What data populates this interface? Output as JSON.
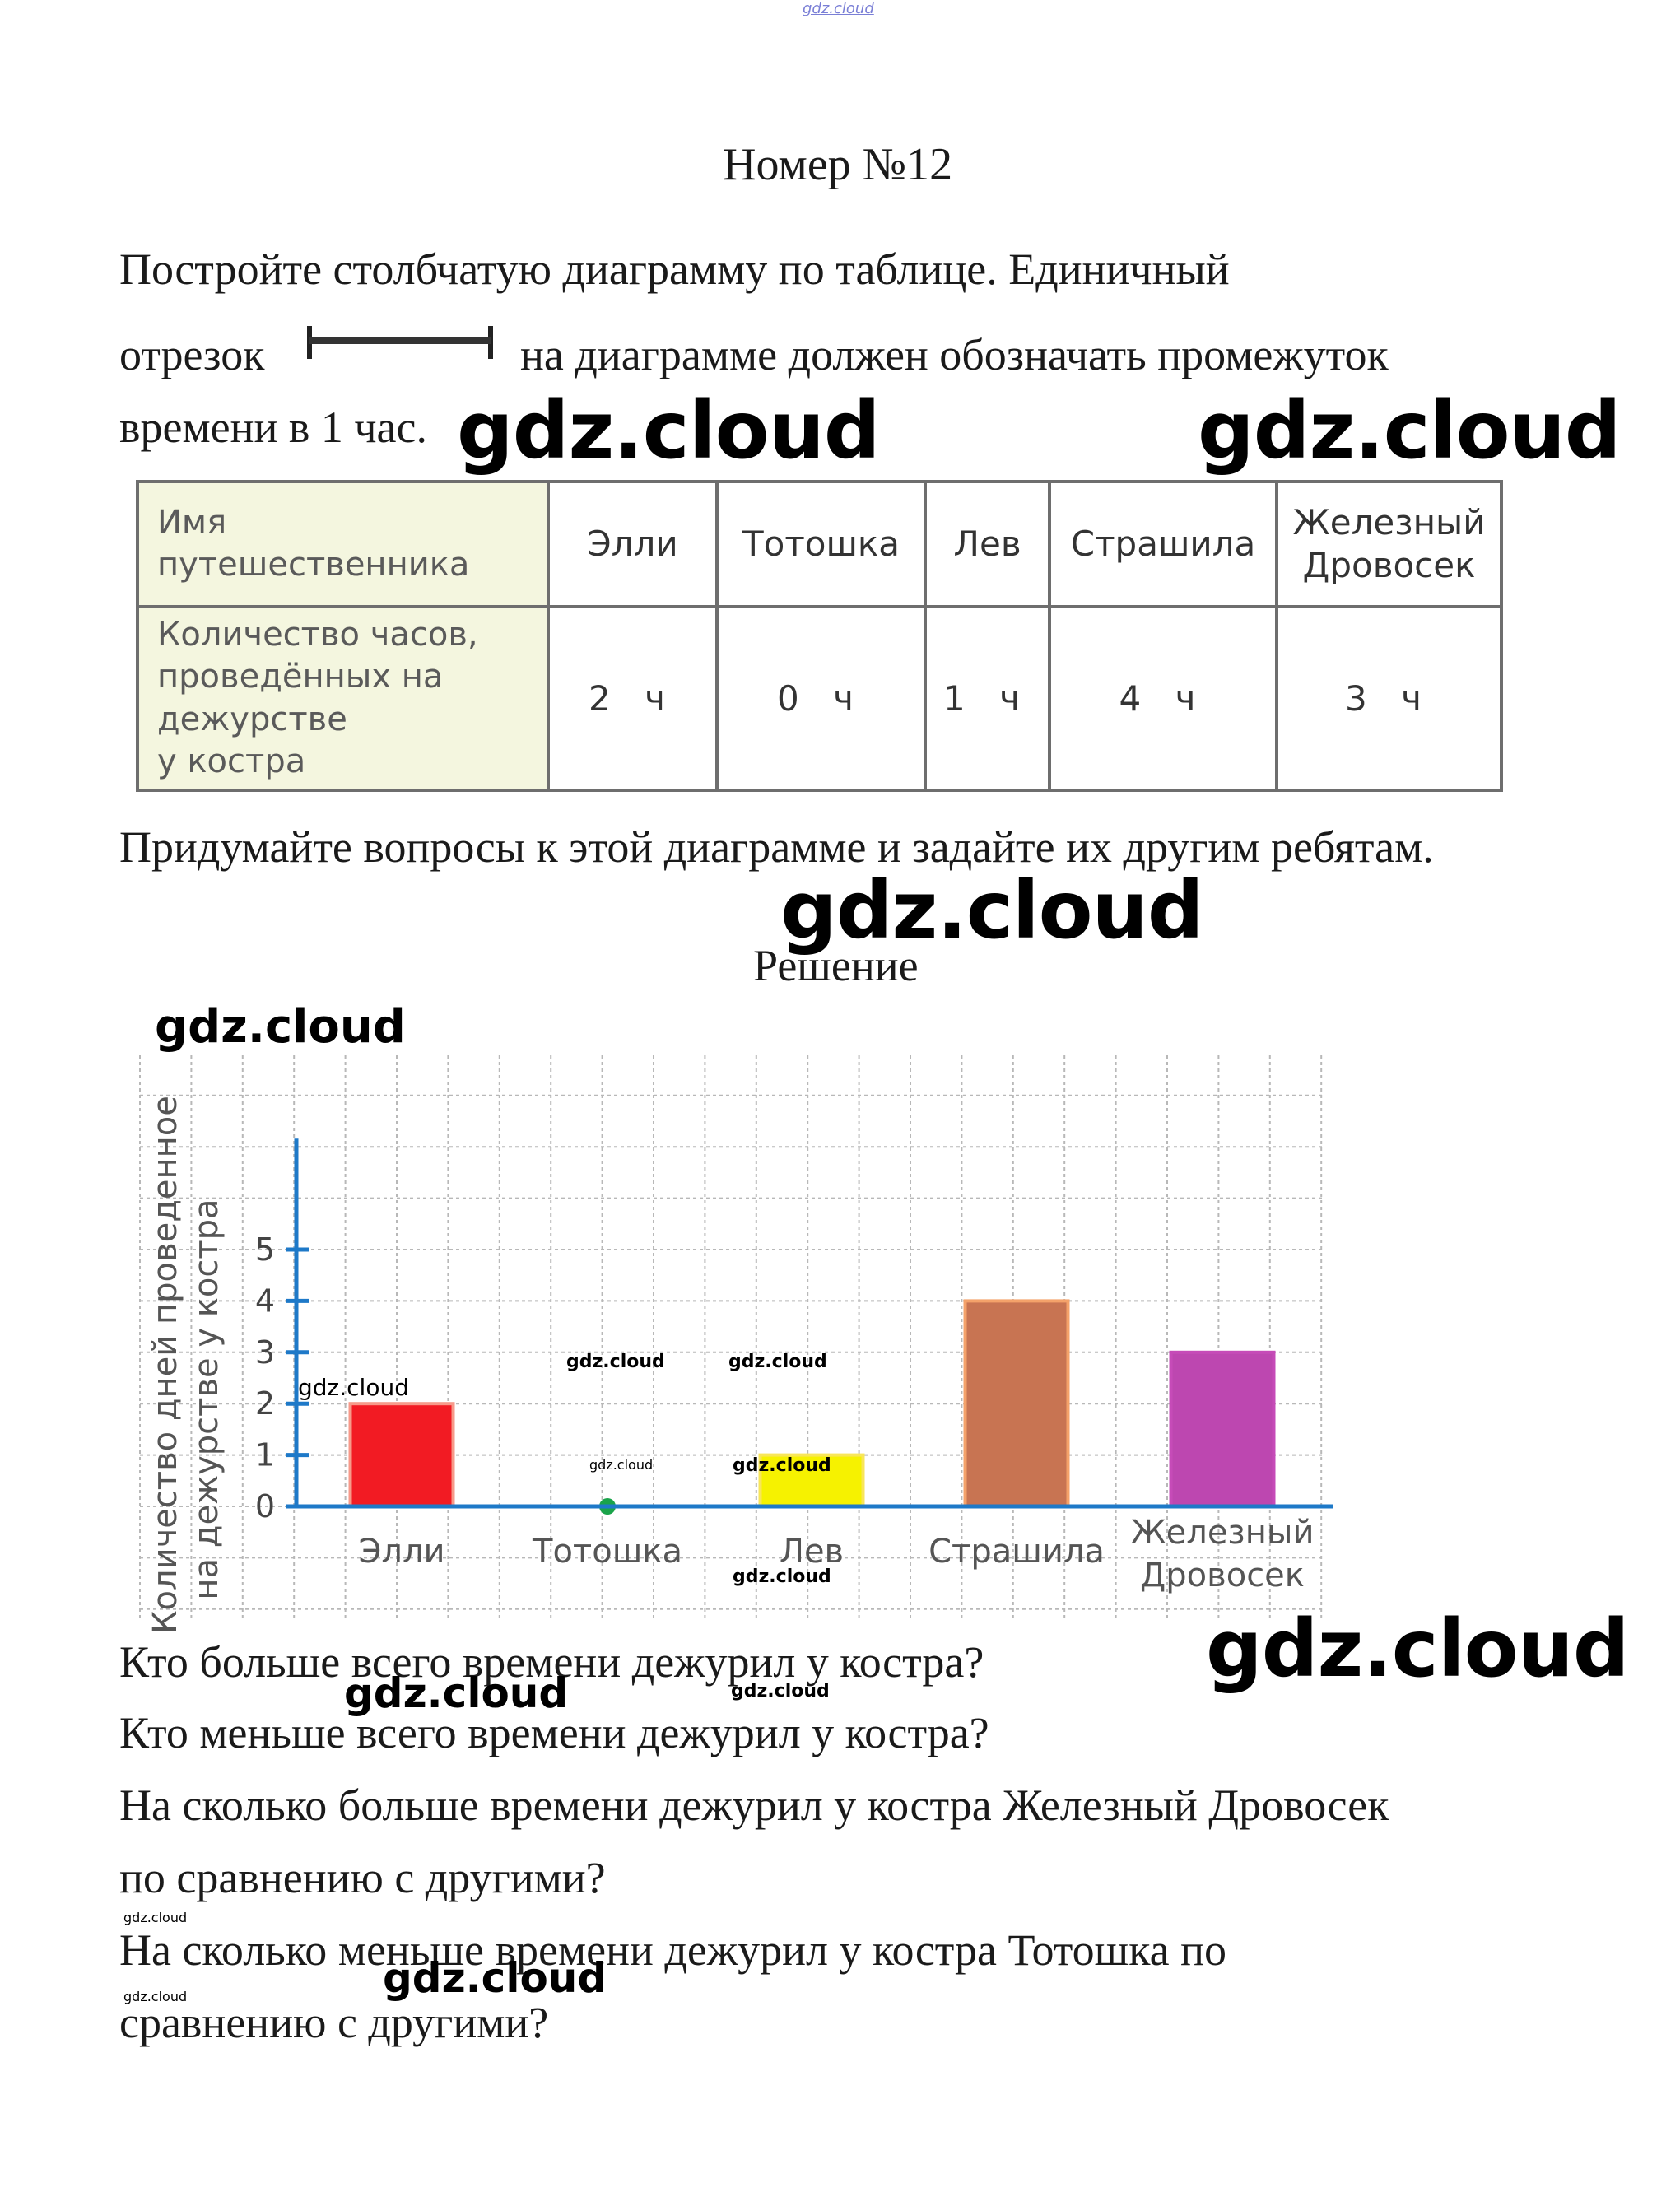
{
  "header": {
    "site_mark": "gdz.cloud",
    "title": "Номер №12"
  },
  "task": {
    "line1": "Постройте столбчатую диаграмму по таблице. Единичный",
    "line2_before": "отрезок",
    "line2_after": "на диаграмме должен обозначать промежуток",
    "line3": "времени в 1 час.",
    "unit_segment_icon": "line-segment-icon"
  },
  "table": {
    "row1_header": [
      "Имя",
      "путешественника"
    ],
    "row2_header": [
      "Количество часов,",
      "проведённых  на",
      "дежурстве",
      "у  костра"
    ],
    "columns": [
      {
        "name": [
          "Элли"
        ],
        "value": "2 ч"
      },
      {
        "name": [
          "Тотошка"
        ],
        "value": "0 ч"
      },
      {
        "name": [
          "Лев"
        ],
        "value": "1 ч"
      },
      {
        "name": [
          "Страшила"
        ],
        "value": "4 ч"
      },
      {
        "name": [
          "Железный",
          "Дровосек"
        ],
        "value": "3 ч"
      }
    ]
  },
  "task_question": "Придумайте вопросы к этой диаграмме и задайте их другим ребятам.",
  "solution_title": "Решение",
  "chart_data": {
    "type": "bar",
    "title": "",
    "ylabel_lines": [
      "Количество дней проведенное",
      "на дежурстве у костра"
    ],
    "xlabel": "",
    "categories": [
      "Элли",
      "Тотошка",
      "Лев",
      "Страшила",
      "Железный Дровосек"
    ],
    "category_label_lines": [
      [
        "Элли"
      ],
      [
        "Тотошка"
      ],
      [
        "Лев"
      ],
      [
        "Страшила"
      ],
      [
        "Железный",
        "Дровосек"
      ]
    ],
    "values": [
      2,
      0,
      1,
      4,
      3
    ],
    "colors": [
      "#f21b23",
      "#1aa34a",
      "#f6f200",
      "#c87452",
      "#bd47b0"
    ],
    "border_colors": [
      "#f79a8a",
      "#1aa34a",
      "#f8e65a",
      "#f4a26a",
      "#c64bb8"
    ],
    "yticks": [
      0,
      1,
      2,
      3,
      4,
      5
    ],
    "ylim": [
      0,
      7
    ],
    "grid": true,
    "axis_color": "#1e79c8"
  },
  "questions": [
    "Кто больше всего времени дежурил у костра?",
    "Кто меньше всего времени дежурил у костра?",
    "На сколько больше времени дежурил у костра Железный Дровосек",
    "по сравнению с другими?",
    "На сколько меньше времени дежурил у костра Тотошка по",
    "сравнению с другими?"
  ],
  "watermark": "gdz.cloud"
}
